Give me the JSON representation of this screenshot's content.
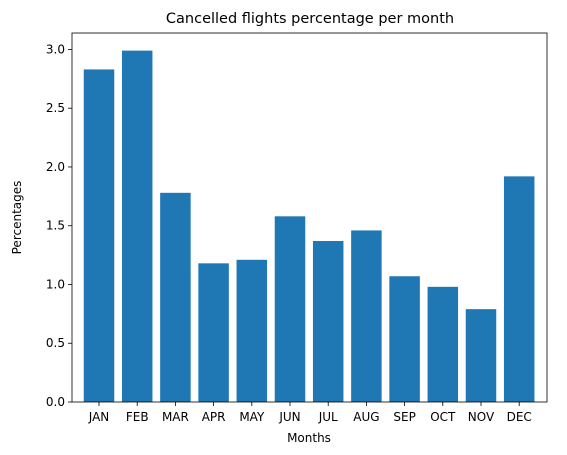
{
  "chart_data": {
    "type": "bar",
    "title": "Cancelled flights percentage per month",
    "xlabel": "Months",
    "ylabel": "Percentages",
    "categories": [
      "JAN",
      "FEB",
      "MAR",
      "APR",
      "MAY",
      "JUN",
      "JUL",
      "AUG",
      "SEP",
      "OCT",
      "NOV",
      "DEC"
    ],
    "values": [
      2.83,
      2.99,
      1.78,
      1.18,
      1.21,
      1.58,
      1.37,
      1.46,
      1.07,
      0.98,
      0.79,
      1.92
    ],
    "yticks": [
      "0.0",
      "0.5",
      "1.0",
      "1.5",
      "2.0",
      "2.5",
      "3.0"
    ],
    "ylim": [
      0,
      3.14
    ],
    "grid": false,
    "colors": {
      "bar": "#1f77b4"
    }
  }
}
